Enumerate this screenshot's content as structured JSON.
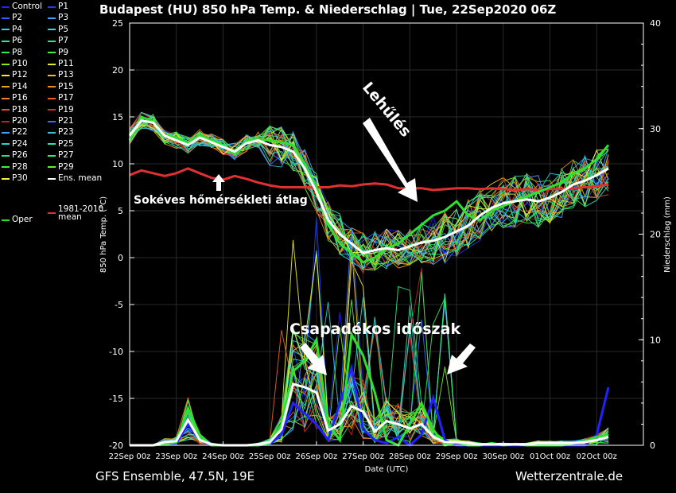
{
  "title": "Budapest  (HU)  850 hPa Temp. & Niederschlag | Tue, 22Sep2020 06Z",
  "footer_left": "GFS Ensemble, 47.5N, 19E",
  "footer_right": "Wetterzentrale.de",
  "legend": {
    "items": [
      {
        "label": "Control",
        "color": "#2222ff"
      },
      {
        "label": "P1",
        "color": "#1f3cff"
      },
      {
        "label": "P2",
        "color": "#3060ff"
      },
      {
        "label": "P3",
        "color": "#3fa0ff"
      },
      {
        "label": "P4",
        "color": "#2ad0e8"
      },
      {
        "label": "P5",
        "color": "#2fe0c8"
      },
      {
        "label": "P6",
        "color": "#30e8a0"
      },
      {
        "label": "P7",
        "color": "#30e880"
      },
      {
        "label": "P8",
        "color": "#30e860"
      },
      {
        "label": "P9",
        "color": "#40f040"
      },
      {
        "label": "P10",
        "color": "#80f020"
      },
      {
        "label": "P11",
        "color": "#e8e830"
      },
      {
        "label": "P12",
        "color": "#f0f020"
      },
      {
        "label": "P13",
        "color": "#f0c020"
      },
      {
        "label": "P14",
        "color": "#f0a020"
      },
      {
        "label": "P15",
        "color": "#f09020"
      },
      {
        "label": "P16",
        "color": "#f08030"
      },
      {
        "label": "P17",
        "color": "#f06020"
      },
      {
        "label": "P18",
        "color": "#e05030"
      },
      {
        "label": "P19",
        "color": "#d03030"
      },
      {
        "label": "P20",
        "color": "#c02020"
      },
      {
        "label": "P21",
        "color": "#3070ff"
      },
      {
        "label": "P22",
        "color": "#40a0ff"
      },
      {
        "label": "P23",
        "color": "#30c0e0"
      },
      {
        "label": "P24",
        "color": "#30d0d0"
      },
      {
        "label": "P25",
        "color": "#30e0b0"
      },
      {
        "label": "P26",
        "color": "#30e080"
      },
      {
        "label": "P27",
        "color": "#30f060"
      },
      {
        "label": "P28",
        "color": "#40f040"
      },
      {
        "label": "P29",
        "color": "#60f030"
      },
      {
        "label": "P30",
        "color": "#f0f040"
      },
      {
        "label": "Ens. mean",
        "color": "#ffffff"
      },
      {
        "label": "1981-2010 mean",
        "color": "#e03030"
      },
      {
        "label": "Oper",
        "color": "#30e030"
      }
    ]
  },
  "annotations": {
    "lehules": "Lehűlés",
    "csapadekos": "Csapadékos időszak",
    "sokeves": "Sokéves hőmérsékleti átlag"
  },
  "chart_data": {
    "type": "line",
    "ylabel": "850 hPa Temp. (°C)",
    "y2label": "Niederschlag (mm)",
    "xlabel": "Date (UTC)",
    "ylim": [
      -20,
      25
    ],
    "y2lim": [
      0,
      40
    ],
    "yticks": [
      -20,
      -15,
      -10,
      -5,
      0,
      5,
      10,
      15,
      20,
      25
    ],
    "y2ticks": [
      0,
      10,
      20,
      30,
      40
    ],
    "x_labels": [
      "22Sep 00z",
      "23Sep 00z",
      "24Sep 00z",
      "25Sep 00z",
      "26Sep 00z",
      "27Sep 00z",
      "28Sep 00z",
      "29Sep 00z",
      "30Sep 00z",
      "01Oct 00z",
      "02Oct 00z"
    ],
    "x_start_offset_h": 6,
    "x_range_h": [
      0,
      264
    ],
    "time_step_h": 6,
    "temp_ens_mean": [
      13.0,
      14.6,
      14.4,
      13.0,
      12.5,
      12.0,
      12.8,
      12.3,
      11.8,
      11.3,
      12.2,
      12.5,
      12.0,
      11.8,
      11.3,
      9.5,
      7.0,
      4.0,
      2.5,
      1.5,
      0.5,
      0.8,
      1.0,
      0.8,
      1.2,
      1.6,
      1.8,
      2.2,
      2.8,
      3.4,
      4.5,
      5.3,
      5.8,
      6.0,
      6.2,
      6.0,
      6.4,
      7.0,
      7.8,
      8.2,
      8.8,
      9.5
    ],
    "temp_oper": [
      12.5,
      15.0,
      14.5,
      13.0,
      12.8,
      12.2,
      13.0,
      12.5,
      12.0,
      11.0,
      12.5,
      12.6,
      12.5,
      12.3,
      12.0,
      10.0,
      7.5,
      3.5,
      1.5,
      0.5,
      -0.5,
      0.0,
      1.0,
      1.5,
      2.5,
      3.5,
      4.5,
      5.0,
      6.0,
      4.5,
      4.0,
      5.0,
      5.5,
      6.0,
      6.5,
      7.0,
      7.5,
      8.0,
      9.0,
      9.5,
      10.5,
      12.0
    ],
    "temp_climate_mean": [
      8.8,
      9.3,
      9.0,
      8.7,
      9.0,
      9.5,
      9.0,
      8.5,
      8.3,
      8.7,
      8.4,
      8.0,
      7.7,
      7.5,
      7.5,
      7.5,
      7.5,
      7.5,
      7.7,
      7.6,
      7.8,
      7.9,
      7.8,
      7.4,
      7.4,
      7.4,
      7.2,
      7.3,
      7.4,
      7.4,
      7.3,
      7.4,
      7.3,
      7.2,
      7.3,
      7.2,
      7.3,
      7.3,
      7.4,
      7.5,
      7.6,
      7.8
    ],
    "precip_ens_mean": [
      0.0,
      0.0,
      0.0,
      0.3,
      0.4,
      2.4,
      0.5,
      0.1,
      0.0,
      0.0,
      0.0,
      0.1,
      0.3,
      1.5,
      5.8,
      5.5,
      5.0,
      1.4,
      2.0,
      3.7,
      3.2,
      1.3,
      2.3,
      2.0,
      1.6,
      2.0,
      0.8,
      0.3,
      0.3,
      0.2,
      0.1,
      0.1,
      0.1,
      0.1,
      0.1,
      0.2,
      0.2,
      0.2,
      0.2,
      0.3,
      0.5,
      0.8
    ],
    "precip_oper": [
      0.0,
      0.0,
      0.0,
      0.1,
      0.3,
      3.5,
      1.0,
      0.0,
      0.0,
      0.0,
      0.0,
      0.0,
      0.2,
      2.0,
      7.0,
      8.0,
      10.0,
      2.0,
      0.5,
      10.5,
      8.5,
      5.0,
      0.5,
      0.0,
      2.0,
      4.0,
      1.5,
      0.0,
      0.3,
      0.0,
      0.0,
      0.2,
      0.0,
      0.1,
      0.0,
      0.0,
      0.0,
      0.0,
      0.2,
      0.4,
      0.8,
      1.0
    ],
    "precip_control": [
      0.0,
      0.0,
      0.0,
      0.1,
      0.2,
      2.0,
      0.5,
      0.0,
      0.0,
      0.0,
      0.0,
      0.0,
      0.1,
      1.0,
      4.0,
      3.0,
      2.0,
      0.5,
      4.0,
      7.3,
      1.5,
      0.5,
      0.2,
      0.8,
      0.0,
      1.0,
      4.5,
      0.5,
      0.0,
      0.0,
      0.0,
      0.0,
      0.0,
      0.0,
      0.0,
      0.0,
      0.0,
      0.0,
      0.0,
      0.0,
      1.0,
      5.5
    ]
  }
}
